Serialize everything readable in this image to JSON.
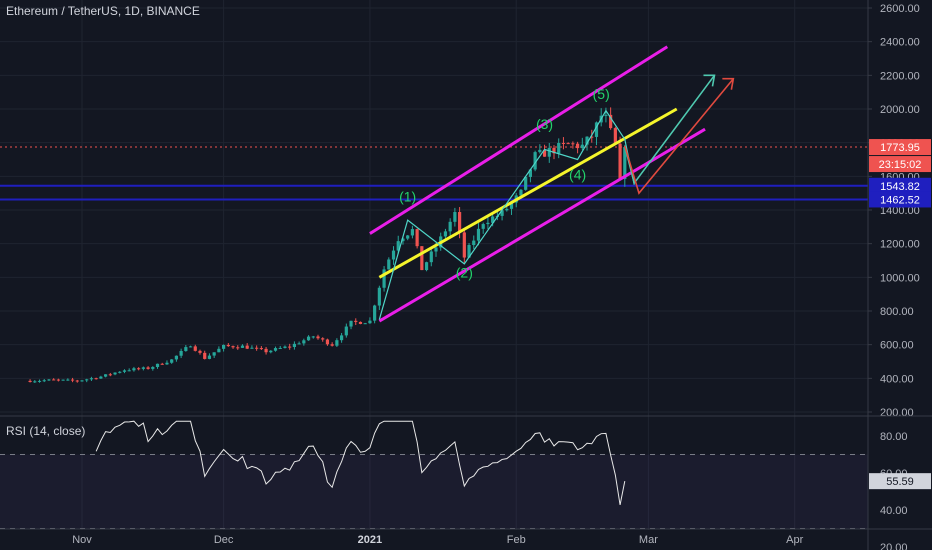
{
  "header": {
    "title": "Ethereum / TetherUS, 1D, BINANCE"
  },
  "rsi_panel": {
    "title": "RSI (14, close)",
    "value_badge": "55.59"
  },
  "price_badges": {
    "last": "1773.95",
    "countdown": "23:15:02",
    "level_high": "1543.82",
    "level_low": "1462.52"
  },
  "colors": {
    "background": "#131722",
    "up_candle": "#26a69a",
    "down_candle": "#ef5350",
    "channel": "#e91ee9",
    "midline": "#f5f52b",
    "wave_line": "#4fd6c8",
    "horizontal_levels": "#1f1fbf",
    "last_price_line": "#ef5350",
    "arrow_green": "#4fc9b0",
    "arrow_red": "#e04a3f",
    "label_green": "#22d36b"
  },
  "chart_data": [
    {
      "type": "candlestick",
      "title": "Ethereum / TetherUS, 1D, BINANCE",
      "y_axis": {
        "min": 200,
        "max": 2600,
        "ticks": [
          "200.00",
          "400.00",
          "600.00",
          "800.00",
          "1000.00",
          "1200.00",
          "1400.00",
          "1600.00",
          "1800.00",
          "2000.00",
          "2200.00",
          "2400.00",
          "2600.00"
        ],
        "scale": "linear",
        "side": "right"
      },
      "x_axis": {
        "ticks": [
          "Nov",
          "Dec",
          "2021",
          "Feb",
          "Mar",
          "Apr"
        ]
      },
      "grid": true,
      "close_path": [
        [
          "2020-10-21",
          385
        ],
        [
          "2020-10-26",
          390
        ],
        [
          "2020-10-31",
          385
        ],
        [
          "2020-11-05",
          410
        ],
        [
          "2020-11-10",
          450
        ],
        [
          "2020-11-15",
          460
        ],
        [
          "2020-11-20",
          510
        ],
        [
          "2020-11-24",
          600
        ],
        [
          "2020-11-27",
          520
        ],
        [
          "2020-12-01",
          590
        ],
        [
          "2020-12-05",
          590
        ],
        [
          "2020-12-10",
          560
        ],
        [
          "2020-12-15",
          590
        ],
        [
          "2020-12-20",
          650
        ],
        [
          "2020-12-24",
          600
        ],
        [
          "2020-12-28",
          730
        ],
        [
          "2021-01-01",
          740
        ],
        [
          "2021-01-04",
          1050
        ],
        [
          "2021-01-07",
          1230
        ],
        [
          "2021-01-10",
          1280
        ],
        [
          "2021-01-12",
          1050
        ],
        [
          "2021-01-15",
          1180
        ],
        [
          "2021-01-19",
          1380
        ],
        [
          "2021-01-21",
          1120
        ],
        [
          "2021-01-25",
          1330
        ],
        [
          "2021-01-29",
          1380
        ],
        [
          "2021-02-02",
          1500
        ],
        [
          "2021-02-05",
          1720
        ],
        [
          "2021-02-09",
          1760
        ],
        [
          "2021-02-12",
          1790
        ],
        [
          "2021-02-15",
          1780
        ],
        [
          "2021-02-17",
          1840
        ],
        [
          "2021-02-19",
          1960
        ],
        [
          "2021-02-20",
          1940
        ],
        [
          "2021-02-22",
          1780
        ],
        [
          "2021-02-23",
          1560
        ],
        [
          "2021-02-24",
          1773.95
        ]
      ],
      "horizontal_levels": [
        1543.82,
        1462.52
      ],
      "last_price": 1773.95,
      "countdown": "23:15:02",
      "wave_labels": [
        "(1)",
        "(2)",
        "(3)",
        "(4)",
        "(5)"
      ],
      "annotations": [
        "ascending channel",
        "channel midline",
        "elliott wave path",
        "projection arrows"
      ]
    },
    {
      "type": "line",
      "title": "RSI (14, close)",
      "y_axis": {
        "ticks": [
          "20.00",
          "40.00",
          "60.00",
          "80.00"
        ],
        "bands": [
          30,
          70
        ]
      },
      "last_value": 55.59
    }
  ]
}
